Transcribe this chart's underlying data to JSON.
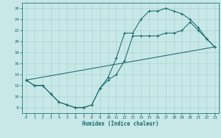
{
  "xlabel": "Humidex (Indice chaleur)",
  "bg_color": "#c8e8e8",
  "line_color": "#1a6b6b",
  "grid_color": "#a8d0d0",
  "xlim": [
    -0.5,
    23.5
  ],
  "ylim": [
    7.0,
    27.0
  ],
  "yticks": [
    8,
    10,
    12,
    14,
    16,
    18,
    20,
    22,
    24,
    26
  ],
  "xticks": [
    0,
    1,
    2,
    3,
    4,
    5,
    6,
    7,
    8,
    9,
    10,
    11,
    12,
    13,
    14,
    15,
    16,
    17,
    18,
    19,
    20,
    21,
    22,
    23
  ],
  "line1_x": [
    0,
    1,
    2,
    3,
    4,
    5,
    6,
    7,
    8,
    9,
    10,
    11,
    12,
    13,
    14,
    15,
    16,
    17,
    18,
    19,
    20,
    21,
    22,
    23
  ],
  "line1_y": [
    13,
    12,
    12,
    10.5,
    9,
    8.5,
    8,
    8,
    8.5,
    11.5,
    13.5,
    17,
    21.5,
    21.5,
    24,
    25.5,
    25.5,
    26,
    25.5,
    25,
    24,
    22.5,
    20.5,
    19
  ],
  "line2_x": [
    0,
    1,
    2,
    3,
    4,
    5,
    6,
    7,
    8,
    9,
    10,
    11,
    12,
    13,
    14,
    15,
    16,
    17,
    18,
    19,
    20,
    21,
    22,
    23
  ],
  "line2_y": [
    13,
    12,
    12,
    10.5,
    9,
    8.5,
    8,
    8,
    8.5,
    11.5,
    13,
    14,
    16.5,
    21,
    21,
    21,
    21,
    21.5,
    21.5,
    22,
    23.5,
    22,
    20.5,
    19
  ],
  "line3_x": [
    0,
    23
  ],
  "line3_y": [
    13,
    19
  ]
}
